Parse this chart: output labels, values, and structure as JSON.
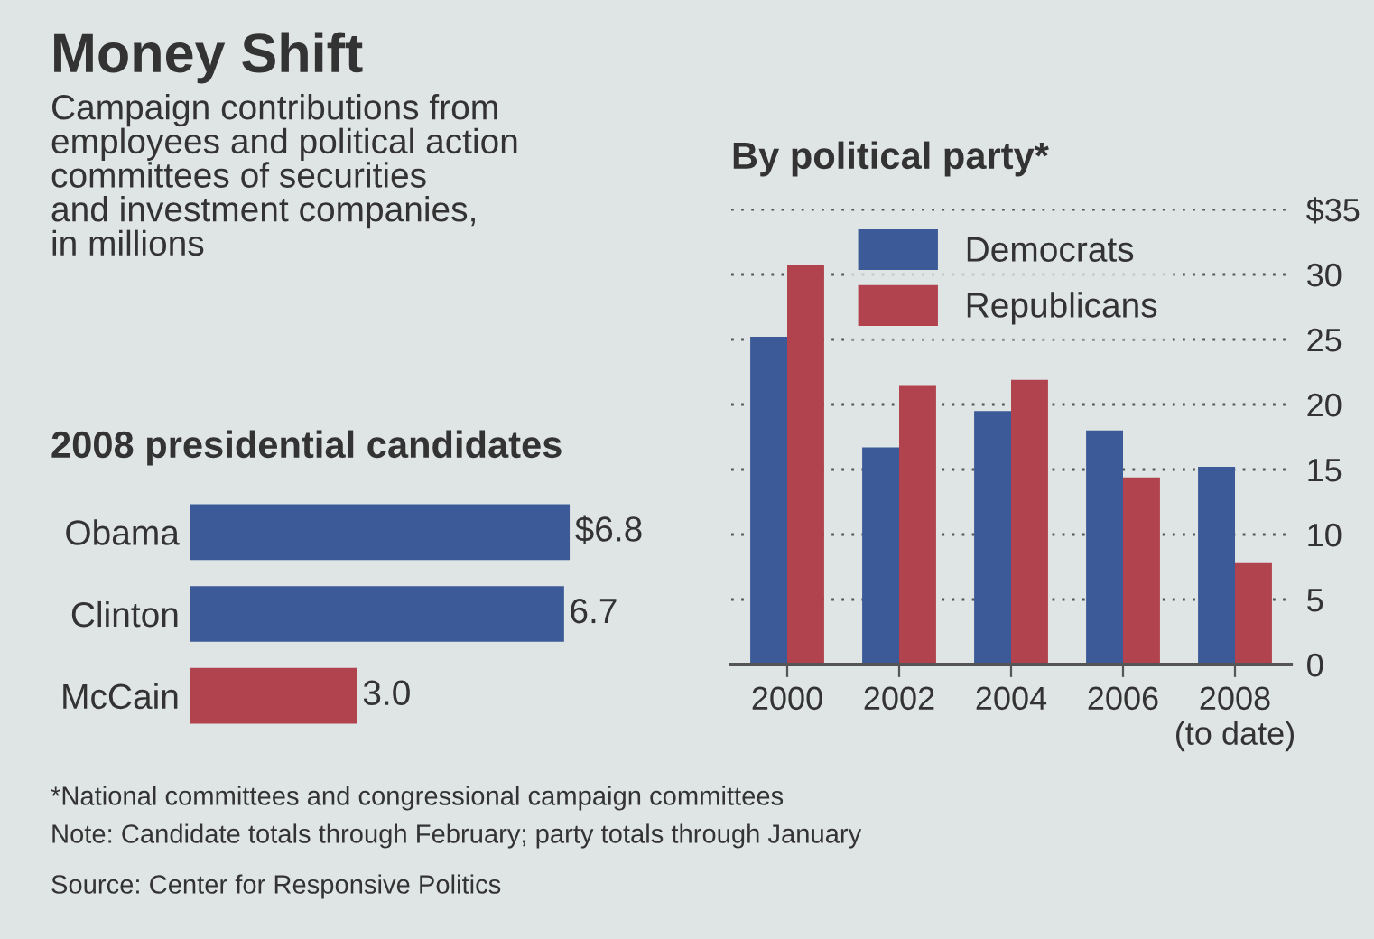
{
  "chart_data": [
    {
      "type": "other",
      "title": "Money Shift",
      "subtitle": "Campaign contributions from\nemployees and political action\ncommittees of securities\nand investment companies,\nin millions",
      "annotations": [
        "*National committees and congressional campaign committees",
        "Note: Candidate totals through February; party totals through January",
        "Source: Center for Responsive Politics"
      ]
    },
    {
      "type": "bar",
      "orientation": "horizontal",
      "title": "2008 presidential candidates",
      "categories": [
        "Obama",
        "Clinton",
        "McCain"
      ],
      "values": [
        6.8,
        6.7,
        3.0
      ],
      "colors": [
        "#3d5a98",
        "#3d5a98",
        "#b1434f"
      ],
      "value_labels": [
        "$6.8",
        "6.7",
        "3.0"
      ]
    },
    {
      "type": "bar",
      "title": "By political party*",
      "categories": [
        "2000",
        "2002",
        "2004",
        "2006",
        "2008\n(to date)"
      ],
      "series": [
        {
          "name": "Democrats",
          "color": "#3d5a98",
          "values": [
            25.2,
            16.7,
            19.5,
            18.0,
            15.2
          ]
        },
        {
          "name": "Republicans",
          "color": "#b1434f",
          "values": [
            30.7,
            21.5,
            21.9,
            14.4,
            7.8
          ]
        }
      ],
      "ylim": [
        0,
        35
      ],
      "yticks": [
        0,
        5,
        10,
        15,
        20,
        25,
        30,
        {
          "value": 35,
          "label": "$35"
        }
      ],
      "grid": "y",
      "legend": "top right"
    }
  ]
}
